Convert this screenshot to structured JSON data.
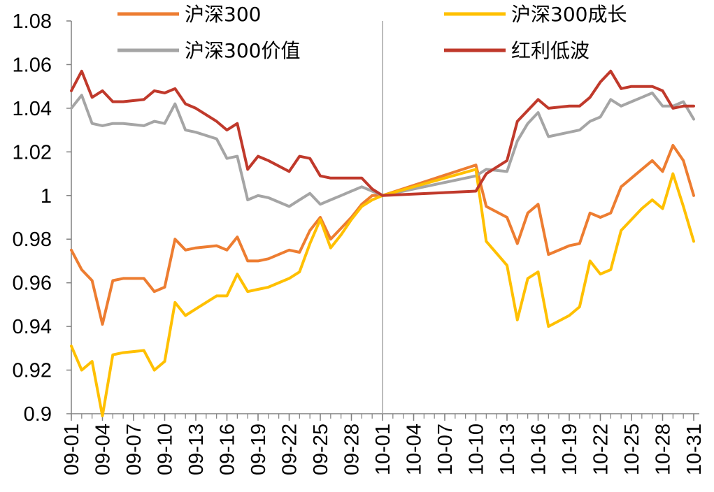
{
  "chart_data": {
    "type": "line",
    "title": "",
    "xlabel": "",
    "ylabel": "",
    "ylim": [
      0.9,
      1.08
    ],
    "yticks": [
      "1.08",
      "1.06",
      "1.04",
      "1.02",
      "1",
      "0.98",
      "0.96",
      "0.94",
      "0.92",
      "0.9"
    ],
    "ytick_values": [
      1.08,
      1.06,
      1.04,
      1.02,
      1.0,
      0.98,
      0.96,
      0.94,
      0.92,
      0.9
    ],
    "xrange": [
      1,
      61
    ],
    "xticks": [
      {
        "pos": 1,
        "label": "09-01"
      },
      {
        "pos": 4,
        "label": "09-04"
      },
      {
        "pos": 7,
        "label": "09-07"
      },
      {
        "pos": 10,
        "label": "09-10"
      },
      {
        "pos": 13,
        "label": "09-13"
      },
      {
        "pos": 16,
        "label": "09-16"
      },
      {
        "pos": 19,
        "label": "09-19"
      },
      {
        "pos": 22,
        "label": "09-22"
      },
      {
        "pos": 25,
        "label": "09-25"
      },
      {
        "pos": 28,
        "label": "09-28"
      },
      {
        "pos": 31,
        "label": "10-01"
      },
      {
        "pos": 34,
        "label": "10-04"
      },
      {
        "pos": 37,
        "label": "10-07"
      },
      {
        "pos": 40,
        "label": "10-10"
      },
      {
        "pos": 43,
        "label": "10-13"
      },
      {
        "pos": 46,
        "label": "10-16"
      },
      {
        "pos": 49,
        "label": "10-19"
      },
      {
        "pos": 52,
        "label": "10-22"
      },
      {
        "pos": 55,
        "label": "10-25"
      },
      {
        "pos": 58,
        "label": "10-28"
      },
      {
        "pos": 61,
        "label": "10-31"
      }
    ],
    "reference_line_x": 31,
    "legend_position": "top",
    "series": [
      {
        "name": "沪深300",
        "color": "#ED7D31",
        "x": [
          1,
          2,
          3,
          4,
          5,
          6,
          8,
          9,
          10,
          11,
          12,
          13,
          15,
          16,
          17,
          18,
          19,
          20,
          22,
          23,
          24,
          25,
          26,
          27,
          28,
          29,
          30,
          31,
          40,
          41,
          43,
          44,
          45,
          46,
          47,
          49,
          50,
          51,
          52,
          53,
          54,
          55,
          56,
          57,
          58,
          59,
          60,
          61
        ],
        "y": [
          0.975,
          0.966,
          0.961,
          0.941,
          0.961,
          0.962,
          0.962,
          0.956,
          0.958,
          0.98,
          0.975,
          0.976,
          0.977,
          0.975,
          0.981,
          0.97,
          0.97,
          0.971,
          0.975,
          0.974,
          0.984,
          0.99,
          0.98,
          0.985,
          0.99,
          0.996,
          1.0,
          1.0,
          1.014,
          0.995,
          0.99,
          0.978,
          0.992,
          0.996,
          0.973,
          0.977,
          0.978,
          0.992,
          0.99,
          0.992,
          1.004,
          1.008,
          1.012,
          1.016,
          1.011,
          1.023,
          1.016,
          1.0
        ]
      },
      {
        "name": "沪深300价值",
        "color": "#A5A5A5",
        "x": [
          1,
          2,
          3,
          4,
          5,
          6,
          8,
          9,
          10,
          11,
          12,
          13,
          15,
          16,
          17,
          18,
          19,
          20,
          22,
          23,
          24,
          25,
          26,
          27,
          28,
          29,
          30,
          31,
          40,
          41,
          43,
          44,
          45,
          46,
          47,
          49,
          50,
          51,
          52,
          53,
          54,
          55,
          56,
          57,
          58,
          59,
          60,
          61
        ],
        "y": [
          1.04,
          1.046,
          1.033,
          1.032,
          1.033,
          1.033,
          1.032,
          1.034,
          1.033,
          1.042,
          1.03,
          1.029,
          1.026,
          1.017,
          1.018,
          0.998,
          1.0,
          0.999,
          0.995,
          0.998,
          1.001,
          0.996,
          0.998,
          1.0,
          1.002,
          1.004,
          1.002,
          1.0,
          1.009,
          1.012,
          1.011,
          1.025,
          1.033,
          1.038,
          1.027,
          1.029,
          1.03,
          1.034,
          1.036,
          1.044,
          1.041,
          1.043,
          1.045,
          1.047,
          1.041,
          1.041,
          1.043,
          1.035
        ]
      },
      {
        "name": "沪深300成长",
        "color": "#FFC000",
        "x": [
          1,
          2,
          3,
          4,
          5,
          6,
          8,
          9,
          10,
          11,
          12,
          13,
          15,
          16,
          17,
          18,
          19,
          20,
          22,
          23,
          24,
          25,
          26,
          27,
          28,
          29,
          30,
          31,
          40,
          41,
          43,
          44,
          45,
          46,
          47,
          49,
          50,
          51,
          52,
          53,
          54,
          55,
          56,
          57,
          58,
          59,
          60,
          61
        ],
        "y": [
          0.931,
          0.92,
          0.924,
          0.899,
          0.927,
          0.928,
          0.929,
          0.92,
          0.924,
          0.951,
          0.945,
          0.948,
          0.954,
          0.954,
          0.964,
          0.956,
          0.957,
          0.958,
          0.962,
          0.965,
          0.978,
          0.989,
          0.976,
          0.982,
          0.989,
          0.995,
          0.998,
          1.0,
          1.012,
          0.979,
          0.968,
          0.943,
          0.962,
          0.965,
          0.94,
          0.945,
          0.949,
          0.97,
          0.964,
          0.966,
          0.984,
          0.989,
          0.994,
          0.998,
          0.994,
          1.01,
          0.995,
          0.979
        ]
      },
      {
        "name": "红利低波",
        "color": "#C0392B",
        "x": [
          1,
          2,
          3,
          4,
          5,
          6,
          8,
          9,
          10,
          11,
          12,
          13,
          15,
          16,
          17,
          18,
          19,
          20,
          22,
          23,
          24,
          25,
          26,
          27,
          28,
          29,
          30,
          31,
          40,
          41,
          43,
          44,
          45,
          46,
          47,
          49,
          50,
          51,
          52,
          53,
          54,
          55,
          56,
          57,
          58,
          59,
          60,
          61
        ],
        "y": [
          1.048,
          1.057,
          1.045,
          1.048,
          1.043,
          1.043,
          1.044,
          1.048,
          1.047,
          1.049,
          1.042,
          1.04,
          1.034,
          1.03,
          1.033,
          1.012,
          1.018,
          1.016,
          1.011,
          1.018,
          1.017,
          1.009,
          1.008,
          1.008,
          1.008,
          1.008,
          1.003,
          1.0,
          1.002,
          1.01,
          1.016,
          1.034,
          1.039,
          1.044,
          1.04,
          1.041,
          1.041,
          1.045,
          1.052,
          1.057,
          1.049,
          1.05,
          1.05,
          1.05,
          1.048,
          1.04,
          1.041,
          1.041
        ]
      }
    ],
    "legend_order": [
      "沪深300",
      "沪深300成长",
      "沪深300价值",
      "红利低波"
    ]
  }
}
